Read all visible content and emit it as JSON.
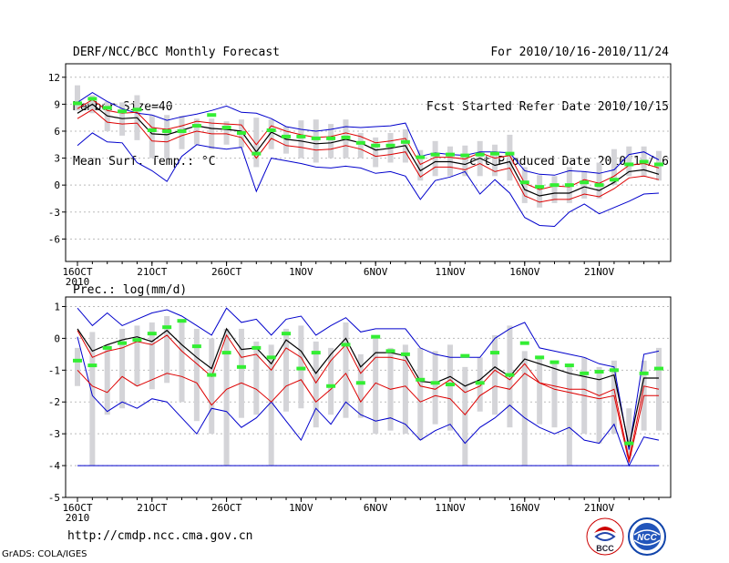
{
  "header": {
    "title": "DERF/NCC/BCC Monthly Forecast",
    "member_size": "Member Size=40",
    "variable": "Mean Surf. Temp.: °C",
    "period": "For 2010/10/16-2010/11/24",
    "started": "Fcst Started Refer Date 2010/10/15",
    "produced": "Fcst Produced Date 2010/10/16"
  },
  "footer": {
    "url": "http://cmdp.ncc.cma.gov.cn",
    "credit": "GrADS: COLA/IGES",
    "logo_bcc": "BCC",
    "logo_ncc": "NCC"
  },
  "colors": {
    "envelope": "#0000cc",
    "spread": "#dd0000",
    "mean": "#000000",
    "bar": "#d4d4d8",
    "obs": "#33ee33",
    "grid": "#bbbbbb"
  },
  "chart_data": [
    {
      "type": "line",
      "title": "Mean Surf. Temp.: °C",
      "x_ticks": [
        "16OCT",
        "21OCT",
        "26OCT",
        "1NOV",
        "6NOV",
        "11NOV",
        "16NOV",
        "21NOV"
      ],
      "x_tick_index": [
        0,
        5,
        10,
        15,
        20,
        25,
        30,
        35
      ],
      "x_sublabel": "2010",
      "ylim": [
        -8.5,
        13.5
      ],
      "yticks": [
        -6,
        -3,
        0,
        3,
        6,
        9,
        12
      ],
      "series": [
        {
          "name": "max",
          "values": [
            9.2,
            10.3,
            9.3,
            8.5,
            8.0,
            7.8,
            7.2,
            7.6,
            7.9,
            8.3,
            8.8,
            8.1,
            8.0,
            7.4,
            6.5,
            6.2,
            6.0,
            6.2,
            6.5,
            6.4,
            6.5,
            6.6,
            6.9,
            3.2,
            3.6,
            3.4,
            3.3,
            3.7,
            3.7,
            3.6,
            1.6,
            1.2,
            1.1,
            1.6,
            1.5,
            1.3,
            1.7,
            3.4,
            3.7,
            2.8
          ]
        },
        {
          "name": "upper",
          "values": [
            8.5,
            9.5,
            8.3,
            8.0,
            8.1,
            6.4,
            6.2,
            6.6,
            7.1,
            6.9,
            6.8,
            6.7,
            4.5,
            6.6,
            6.0,
            5.6,
            5.3,
            5.4,
            5.8,
            5.4,
            4.7,
            4.9,
            5.2,
            2.3,
            3.1,
            3.1,
            2.9,
            3.6,
            3.0,
            3.3,
            0.2,
            -0.5,
            -0.1,
            -0.2,
            0.6,
            0.2,
            1.0,
            2.2,
            2.4,
            1.9
          ]
        },
        {
          "name": "mean",
          "values": [
            8.0,
            9.0,
            7.7,
            7.4,
            7.5,
            5.7,
            5.6,
            6.1,
            6.6,
            6.3,
            6.2,
            6.0,
            3.7,
            5.9,
            5.1,
            4.9,
            4.6,
            4.7,
            5.1,
            4.7,
            3.9,
            4.1,
            4.4,
            1.6,
            2.6,
            2.6,
            2.3,
            3.0,
            2.2,
            2.6,
            -0.5,
            -1.2,
            -0.9,
            -0.9,
            -0.2,
            -0.6,
            0.3,
            1.5,
            1.7,
            1.2
          ]
        },
        {
          "name": "lower",
          "values": [
            7.4,
            8.4,
            7.0,
            6.8,
            6.9,
            4.9,
            4.8,
            5.5,
            6.0,
            5.7,
            5.7,
            5.3,
            3.0,
            5.2,
            4.4,
            4.2,
            3.9,
            4.0,
            4.4,
            4.0,
            3.2,
            3.4,
            3.7,
            0.9,
            2.0,
            2.0,
            1.7,
            2.4,
            1.5,
            1.9,
            -1.2,
            -1.9,
            -1.6,
            -1.6,
            -1.0,
            -1.3,
            -0.4,
            0.8,
            1.0,
            0.6
          ]
        },
        {
          "name": "min",
          "values": [
            4.4,
            5.8,
            4.8,
            4.7,
            2.5,
            1.6,
            0.4,
            3.2,
            4.5,
            4.2,
            4.0,
            4.2,
            -0.7,
            3.0,
            2.7,
            2.4,
            2.0,
            1.9,
            2.1,
            1.9,
            1.3,
            1.5,
            1.0,
            -1.6,
            0.5,
            0.9,
            1.5,
            -1.0,
            0.6,
            -0.9,
            -3.6,
            -4.5,
            -4.6,
            -3.0,
            -2.1,
            -3.2,
            -2.5,
            -1.8,
            -1.0,
            -0.9
          ]
        },
        {
          "name": "bar_top",
          "values": [
            11.1,
            10.0,
            9.3,
            9.2,
            10.0,
            7.8,
            7.8,
            7.7,
            7.4,
            7.4,
            7.1,
            7.3,
            7.5,
            7.3,
            6.5,
            7.2,
            7.3,
            6.8,
            7.3,
            5.8,
            5.3,
            5.8,
            6.2,
            3.9,
            4.9,
            4.3,
            4.4,
            4.9,
            4.5,
            5.6,
            2.0,
            1.1,
            1.0,
            2.0,
            1.5,
            2.5,
            4.0,
            4.3,
            4.3,
            3.8
          ]
        },
        {
          "name": "bar_bottom",
          "values": [
            8.3,
            8.0,
            6.0,
            5.5,
            5.0,
            3.0,
            3.0,
            4.0,
            4.5,
            4.0,
            4.5,
            4.2,
            2.0,
            4.0,
            3.5,
            3.0,
            2.5,
            3.0,
            3.0,
            3.0,
            2.0,
            2.5,
            2.5,
            0.5,
            1.0,
            1.0,
            1.0,
            1.0,
            1.0,
            0.5,
            -2.0,
            -2.5,
            -2.0,
            -2.0,
            -1.5,
            -1.5,
            0.0,
            1.0,
            1.0,
            0.5
          ]
        },
        {
          "name": "obs",
          "values": [
            9.1,
            9.6,
            8.6,
            8.2,
            8.4,
            6.1,
            6.0,
            6.0,
            6.6,
            7.8,
            6.4,
            5.8,
            3.5,
            6.1,
            5.4,
            5.4,
            5.2,
            5.2,
            5.3,
            4.7,
            4.4,
            4.4,
            4.8,
            3.1,
            3.4,
            3.4,
            3.3,
            3.4,
            3.5,
            3.5,
            0.3,
            -0.2,
            0.0,
            0.0,
            0.3,
            0.0,
            0.6,
            2.3,
            2.6,
            2.3
          ]
        }
      ]
    },
    {
      "type": "line",
      "title": "Prec.: log(mm/d)",
      "x_ticks": [
        "16OCT",
        "21OCT",
        "26OCT",
        "1NOV",
        "6NOV",
        "11NOV",
        "16NOV",
        "21NOV"
      ],
      "x_tick_index": [
        0,
        5,
        10,
        15,
        20,
        25,
        30,
        35
      ],
      "x_sublabel": "2010",
      "ylim": [
        -5,
        1.3
      ],
      "yticks": [
        -5,
        -4,
        -3,
        -2,
        -1,
        0,
        1
      ],
      "series": [
        {
          "name": "max",
          "values": [
            0.95,
            0.4,
            0.8,
            0.4,
            0.6,
            0.8,
            0.9,
            0.7,
            0.4,
            0.1,
            0.95,
            0.5,
            0.6,
            0.1,
            0.6,
            0.7,
            0.1,
            0.4,
            0.65,
            0.2,
            0.3,
            0.3,
            0.3,
            -0.3,
            -0.5,
            -0.6,
            -0.6,
            -0.6,
            0.0,
            0.3,
            0.5,
            -0.3,
            -0.4,
            -0.5,
            -0.6,
            -0.8,
            -0.9,
            -3.5,
            -0.5,
            -0.4
          ]
        },
        {
          "name": "upper",
          "values": [
            0.25,
            -0.6,
            -0.4,
            -0.3,
            -0.1,
            -0.2,
            0.1,
            -0.4,
            -0.8,
            -1.2,
            0.1,
            -0.6,
            -0.5,
            -1.0,
            -0.3,
            -0.6,
            -1.4,
            -0.7,
            -0.2,
            -1.1,
            -0.6,
            -0.6,
            -0.7,
            -1.5,
            -1.6,
            -1.3,
            -1.7,
            -1.5,
            -1.0,
            -1.3,
            -0.8,
            -1.4,
            -1.5,
            -1.6,
            -1.6,
            -1.8,
            -1.6,
            -3.8,
            -1.5,
            -1.6
          ]
        },
        {
          "name": "mean",
          "values": [
            0.3,
            -0.4,
            -0.2,
            -0.05,
            0.05,
            -0.1,
            0.25,
            -0.2,
            -0.6,
            -0.95,
            0.3,
            -0.35,
            -0.3,
            -0.8,
            -0.05,
            -0.4,
            -1.1,
            -0.5,
            0.0,
            -0.9,
            -0.45,
            -0.45,
            -0.55,
            -1.35,
            -1.4,
            -1.2,
            -1.5,
            -1.3,
            -0.9,
            -1.2,
            -0.65,
            -0.8,
            -0.95,
            -1.1,
            -1.2,
            -1.3,
            -1.15,
            -3.4,
            -1.25,
            -1.25
          ]
        },
        {
          "name": "lower",
          "values": [
            -1.0,
            -1.5,
            -1.7,
            -1.2,
            -1.5,
            -1.3,
            -1.1,
            -1.2,
            -1.4,
            -2.1,
            -1.6,
            -1.4,
            -1.6,
            -2.0,
            -1.5,
            -1.3,
            -2.0,
            -1.6,
            -1.1,
            -2.0,
            -1.4,
            -1.6,
            -1.5,
            -2.0,
            -1.8,
            -1.9,
            -2.4,
            -1.8,
            -1.5,
            -1.6,
            -1.1,
            -1.4,
            -1.6,
            -1.7,
            -1.8,
            -1.9,
            -1.8,
            -3.9,
            -1.8,
            -1.8
          ]
        },
        {
          "name": "min",
          "values": [
            0.05,
            -1.8,
            -2.3,
            -2.0,
            -2.2,
            -1.9,
            -2.0,
            -2.5,
            -3.0,
            -2.2,
            -2.3,
            -2.8,
            -2.5,
            -2.0,
            -2.6,
            -3.2,
            -2.2,
            -2.7,
            -2.0,
            -2.4,
            -2.6,
            -2.5,
            -2.7,
            -3.2,
            -2.9,
            -2.7,
            -3.3,
            -2.8,
            -2.5,
            -2.1,
            -2.5,
            -2.8,
            -3.0,
            -2.8,
            -3.2,
            -3.3,
            -2.7,
            -4.0,
            -3.1,
            -3.2
          ]
        },
        {
          "name": "bar_top",
          "values": [
            -0.3,
            0.2,
            -0.2,
            0.3,
            0.4,
            0.5,
            0.7,
            0.6,
            0.3,
            0.0,
            0.3,
            0.3,
            -0.1,
            -0.2,
            0.3,
            0.4,
            -0.1,
            -0.3,
            0.5,
            -0.5,
            0.0,
            -0.3,
            -0.2,
            -0.3,
            -0.4,
            -0.2,
            -0.9,
            -0.6,
            0.1,
            0.4,
            -0.4,
            -0.6,
            -0.7,
            -0.8,
            -0.6,
            -0.9,
            -0.7,
            -2.2,
            -0.7,
            -0.3
          ]
        },
        {
          "name": "bar_bottom",
          "values": [
            -1.5,
            -4.0,
            -2.4,
            -2.2,
            -1.5,
            -1.6,
            -1.4,
            -2.0,
            -2.6,
            -3.0,
            -4.0,
            -2.5,
            -2.4,
            -4.0,
            -2.3,
            -2.2,
            -2.8,
            -2.4,
            -2.5,
            -2.5,
            -3.0,
            -2.9,
            -3.0,
            -3.2,
            -2.7,
            -2.9,
            -4.0,
            -2.3,
            -2.4,
            -2.8,
            -4.0,
            -2.7,
            -2.8,
            -4.0,
            -3.0,
            -3.3,
            -3.0,
            -3.7,
            -2.9,
            -2.9
          ]
        },
        {
          "name": "obs",
          "values": [
            -0.7,
            -0.85,
            -0.3,
            -0.15,
            -0.05,
            0.15,
            0.35,
            0.55,
            -0.25,
            -1.15,
            -0.45,
            -0.9,
            -0.3,
            -0.6,
            0.15,
            -0.95,
            -0.45,
            -1.5,
            -0.2,
            -1.4,
            0.05,
            -0.4,
            -0.5,
            -1.3,
            -1.4,
            -1.45,
            -0.55,
            -1.4,
            -0.45,
            -1.15,
            -0.15,
            -0.6,
            -0.75,
            -0.85,
            -1.1,
            -1.05,
            -1.0,
            -3.3,
            -1.1,
            -0.95
          ]
        },
        {
          "name": "floor",
          "values": [
            -4,
            -4,
            -4,
            -4,
            -4,
            -4,
            -4,
            -4,
            -4,
            -4,
            -4,
            -4,
            -4,
            -4,
            -4,
            -4,
            -4,
            -4,
            -4,
            -4,
            -4,
            -4,
            -4,
            -4,
            -4,
            -4,
            -4,
            -4,
            -4,
            -4,
            -4,
            -4,
            -4,
            -4,
            -4,
            -4,
            -4,
            -4,
            -4,
            -4
          ]
        }
      ]
    }
  ]
}
